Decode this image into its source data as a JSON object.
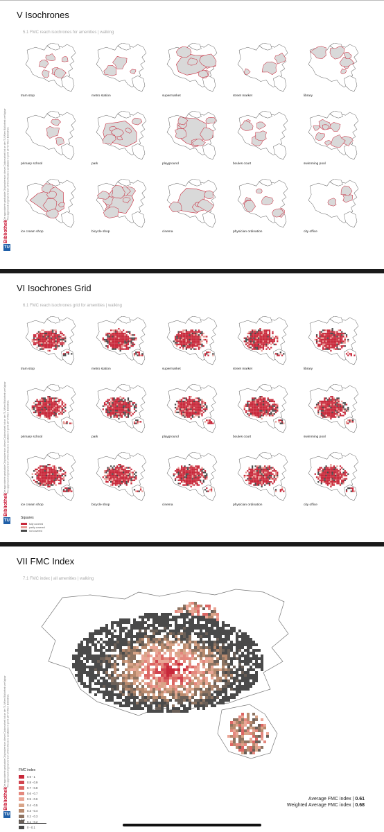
{
  "sections": [
    {
      "id": "p1",
      "title": "V Isochrones",
      "subtitle": "5.1 FMC reach isochrones for amenities | walking",
      "kind": "isochrone",
      "amenities": [
        "tram stop",
        "metro station",
        "supermarket",
        "street market",
        "library",
        "primary school",
        "park",
        "playground",
        "boules court",
        "swimming pool",
        "ice cream shop",
        "bicycle shop",
        "cinema",
        "physician ordination",
        "city office"
      ]
    },
    {
      "id": "p2",
      "title": "VI Isochrones Grid",
      "subtitle": "6.1 FMC reach isochrones grid for amenities | walking",
      "kind": "grid",
      "amenities": [
        "tram stop",
        "metro station",
        "supermarket",
        "street market",
        "library",
        "primary school",
        "park",
        "playground",
        "boules court",
        "swimming pool",
        "ice cream shop",
        "bicycle shop",
        "cinema",
        "physician ordination",
        "city office"
      ],
      "legend": {
        "title": "Squares",
        "items": [
          {
            "label": "fully covered",
            "color": "#c8283a"
          },
          {
            "label": "partly covered",
            "color": "#e89a94"
          },
          {
            "label": "not covered",
            "color": "#4a4a4a"
          }
        ]
      }
    },
    {
      "id": "p3",
      "title": "VII FMC Index",
      "subtitle": "7.1 FMC index | all amenities | walking",
      "kind": "index",
      "legend": {
        "title": "FMC index",
        "items": [
          {
            "label": "0.9 - 1",
            "color": "#c8283a"
          },
          {
            "label": "0.8 - 0.9",
            "color": "#d2444f"
          },
          {
            "label": "0.7 - 0.8",
            "color": "#dc6663"
          },
          {
            "label": "0.6 - 0.7",
            "color": "#e4887e"
          },
          {
            "label": "0.5 - 0.6",
            "color": "#eaa696"
          },
          {
            "label": "0.4 - 0.5",
            "color": "#d8a488"
          },
          {
            "label": "0.3 - 0.4",
            "color": "#b88a6e"
          },
          {
            "label": "0.2 - 0.3",
            "color": "#8e7462"
          },
          {
            "label": "0.1 - 0.2",
            "color": "#6b6058"
          },
          {
            "label": "0 - 0.1",
            "color": "#4a4a4a"
          }
        ]
      },
      "scale_label": "2 km",
      "average_label": "Average FMC index | ",
      "average_value": "0.61",
      "weighted_label": "Weighted Average FMC index | ",
      "weighted_value": "0.68"
    }
  ],
  "side_note": {
    "line1": "Die approbierte gedruckte Originalversion dieser Diplomarbeit ist an der TU Wien Bibliothek verfügbar",
    "line2": "The approved original version of this thesis is available in print at TU Wien Bibliothek."
  },
  "brand": {
    "name": "Bibliothek",
    "short": "TU"
  }
}
